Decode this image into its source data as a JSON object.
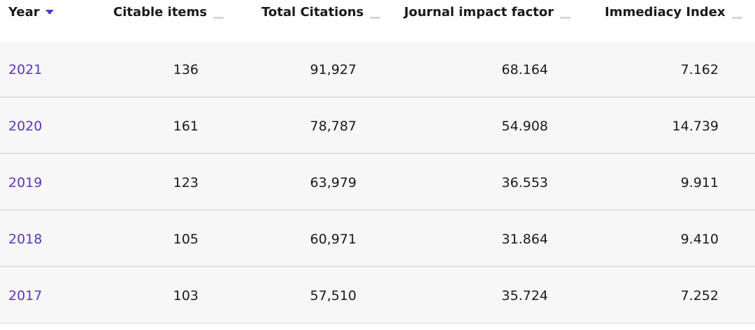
{
  "columns": [
    {
      "label": "Year",
      "sort": "descending"
    },
    {
      "label": "Citable items",
      "sort": "none"
    },
    {
      "label": "Total Citations",
      "sort": "none"
    },
    {
      "label": "Journal impact factor",
      "sort": "none"
    },
    {
      "label": "Immediacy Index",
      "sort": "none"
    }
  ],
  "rows": [
    {
      "year": "2021",
      "citable_items": "136",
      "total_citations": "91,927",
      "journal_impact_factor": "68.164",
      "immediacy_index": "7.162"
    },
    {
      "year": "2020",
      "citable_items": "161",
      "total_citations": "78,787",
      "journal_impact_factor": "54.908",
      "immediacy_index": "14.739"
    },
    {
      "year": "2019",
      "citable_items": "123",
      "total_citations": "63,979",
      "journal_impact_factor": "36.553",
      "immediacy_index": "9.911"
    },
    {
      "year": "2018",
      "citable_items": "105",
      "total_citations": "60,971",
      "journal_impact_factor": "31.864",
      "immediacy_index": "9.410"
    },
    {
      "year": "2017",
      "citable_items": "103",
      "total_citations": "57,510",
      "journal_impact_factor": "35.724",
      "immediacy_index": "7.252"
    }
  ],
  "colors": {
    "accent": "#5e33bf",
    "row_background": "#f7f7f7",
    "row_divider": "#e1e1e1",
    "inactive_sort": "#d6d6d6"
  },
  "icons": {
    "active_sort": "sort-descending-icon",
    "inactive_sort": "sort-inactive-icon"
  }
}
